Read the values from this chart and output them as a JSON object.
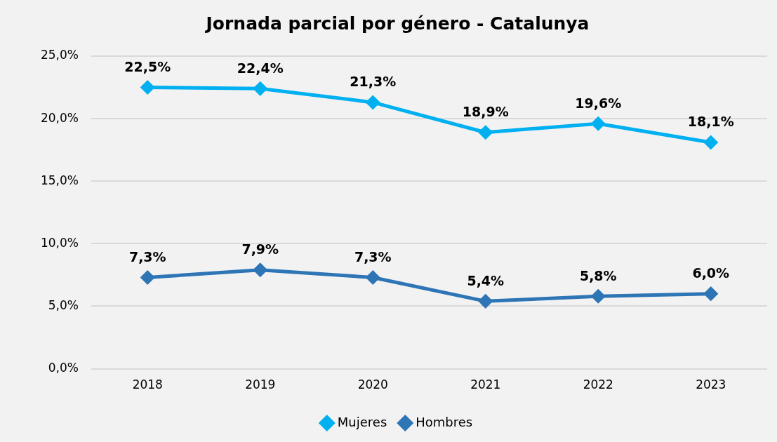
{
  "chart_data": {
    "type": "line",
    "title": "Jornada parcial por género - Catalunya",
    "categories": [
      "2018",
      "2019",
      "2020",
      "2021",
      "2022",
      "2023"
    ],
    "series": [
      {
        "name": "Mujeres",
        "color": "#00b0f0",
        "values": [
          22.5,
          22.4,
          21.3,
          18.9,
          19.6,
          18.1
        ],
        "value_labels": [
          "22,5%",
          "22,4%",
          "21,3%",
          "18,9%",
          "19,6%",
          "18,1%"
        ]
      },
      {
        "name": "Hombres",
        "color": "#2e75b6",
        "values": [
          7.3,
          7.9,
          7.3,
          5.4,
          5.8,
          6.0
        ],
        "value_labels": [
          "7,3%",
          "7,9%",
          "7,3%",
          "5,4%",
          "5,8%",
          "6,0%"
        ]
      }
    ],
    "ylim": [
      0,
      25
    ],
    "yticks": [
      {
        "value": 0,
        "label": "0,0%"
      },
      {
        "value": 5,
        "label": "5,0%"
      },
      {
        "value": 10,
        "label": "10,0%"
      },
      {
        "value": 15,
        "label": "15,0%"
      },
      {
        "value": 20,
        "label": "20,0%"
      },
      {
        "value": 25,
        "label": "25,0%"
      }
    ],
    "grid": "y",
    "legend": "bottom",
    "marker": "diamond",
    "line_style": "solid"
  }
}
